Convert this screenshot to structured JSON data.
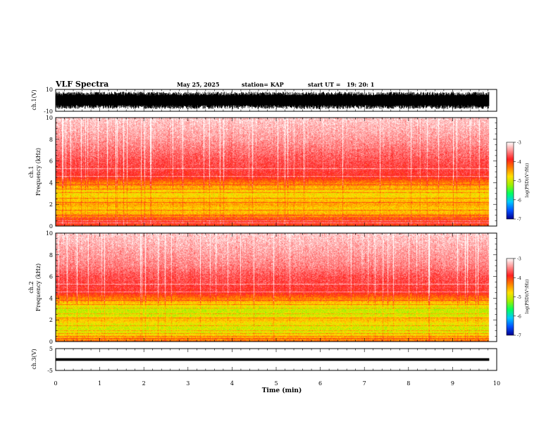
{
  "header": {
    "title": "VLF Spectra",
    "date": "May 25, 2025",
    "station": "station= KAP",
    "start_label": "start  UT  =",
    "start_time": "19: 20: 1"
  },
  "chart_data": [
    {
      "type": "line",
      "panel": "ch1-waveform",
      "ylabel": "ch.1(V)",
      "ylim": [
        -10,
        10
      ],
      "yticks": [
        "10",
        "-10"
      ],
      "xlim": [
        0,
        10
      ],
      "data_end_min": 9.83,
      "color": "#000000",
      "amplitude_range": [
        -8,
        8
      ]
    },
    {
      "type": "heatmap",
      "panel": "ch1-spectrogram",
      "ylabel_top": "ch.1",
      "ylabel": "Frequency  (kHz)",
      "ylim": [
        0,
        10
      ],
      "yticks": [
        "0",
        "2",
        "4",
        "6",
        "8",
        "10"
      ],
      "xlim": [
        0,
        10
      ],
      "data_end_min": 9.83,
      "colorbar": {
        "label": "log(PSD)(V²/Hz)",
        "ticks": [
          "-3",
          "-4",
          "-5",
          "-6",
          "-7"
        ],
        "range": [
          -7,
          -3
        ],
        "colors": [
          "#000090",
          "#0050ff",
          "#00c8ff",
          "#00ff60",
          "#a0f000",
          "#ffe000",
          "#ff8000",
          "#ff2020",
          "#ff9090",
          "#ffffff"
        ]
      },
      "frequency_profile_log_psd": [
        {
          "f": 0.0,
          "v": -4.1
        },
        {
          "f": 0.3,
          "v": -3.9
        },
        {
          "f": 0.5,
          "v": -4.0
        },
        {
          "f": 0.8,
          "v": -4.3
        },
        {
          "f": 1.2,
          "v": -4.6
        },
        {
          "f": 1.6,
          "v": -4.7
        },
        {
          "f": 2.0,
          "v": -4.5
        },
        {
          "f": 2.5,
          "v": -4.7
        },
        {
          "f": 3.0,
          "v": -4.8
        },
        {
          "f": 3.5,
          "v": -4.6
        },
        {
          "f": 4.0,
          "v": -4.3
        },
        {
          "f": 4.5,
          "v": -3.9
        },
        {
          "f": 5.0,
          "v": -3.8
        },
        {
          "f": 6.0,
          "v": -3.7
        },
        {
          "f": 7.0,
          "v": -3.55
        },
        {
          "f": 8.0,
          "v": -3.4
        },
        {
          "f": 9.0,
          "v": -3.3
        },
        {
          "f": 10.0,
          "v": -3.2
        }
      ]
    },
    {
      "type": "heatmap",
      "panel": "ch2-spectrogram",
      "ylabel_top": "ch.2",
      "ylabel": "Frequency  (kHz)",
      "ylim": [
        0,
        10
      ],
      "yticks": [
        "0",
        "2",
        "4",
        "6",
        "8",
        "10"
      ],
      "xlim": [
        0,
        10
      ],
      "data_end_min": 9.83,
      "colorbar": {
        "label": "log(PSD)(V²/Hz)",
        "ticks": [
          "-3",
          "-4",
          "-5",
          "-6",
          "-7"
        ],
        "range": [
          -7,
          -3
        ],
        "colors": [
          "#000090",
          "#0050ff",
          "#00c8ff",
          "#00ff60",
          "#a0f000",
          "#ffe000",
          "#ff8000",
          "#ff2020",
          "#ff9090",
          "#ffffff"
        ]
      },
      "frequency_profile_log_psd": [
        {
          "f": 0.0,
          "v": -4.2
        },
        {
          "f": 0.4,
          "v": -4.6
        },
        {
          "f": 0.8,
          "v": -4.9
        },
        {
          "f": 1.2,
          "v": -5.0
        },
        {
          "f": 1.6,
          "v": -4.9
        },
        {
          "f": 2.0,
          "v": -4.6
        },
        {
          "f": 2.4,
          "v": -5.0
        },
        {
          "f": 3.0,
          "v": -5.05
        },
        {
          "f": 3.5,
          "v": -4.7
        },
        {
          "f": 4.0,
          "v": -4.3
        },
        {
          "f": 4.5,
          "v": -3.9
        },
        {
          "f": 5.0,
          "v": -3.8
        },
        {
          "f": 6.0,
          "v": -3.7
        },
        {
          "f": 7.0,
          "v": -3.5
        },
        {
          "f": 8.0,
          "v": -3.4
        },
        {
          "f": 9.0,
          "v": -3.3
        },
        {
          "f": 10.0,
          "v": -3.2
        }
      ]
    },
    {
      "type": "line",
      "panel": "ch3-waveform",
      "ylabel": "ch.3(V)",
      "ylim": [
        -5,
        5
      ],
      "yticks": [
        "5",
        "-5"
      ],
      "xlim": [
        0,
        10
      ],
      "xticks": [
        "0",
        "1",
        "2",
        "3",
        "4",
        "5",
        "6",
        "7",
        "8",
        "9",
        "10"
      ],
      "xlabel": "Time  (min)",
      "data_end_min": 9.83,
      "color": "#000000",
      "level": 0,
      "band_halfwidth": 0.6
    }
  ]
}
